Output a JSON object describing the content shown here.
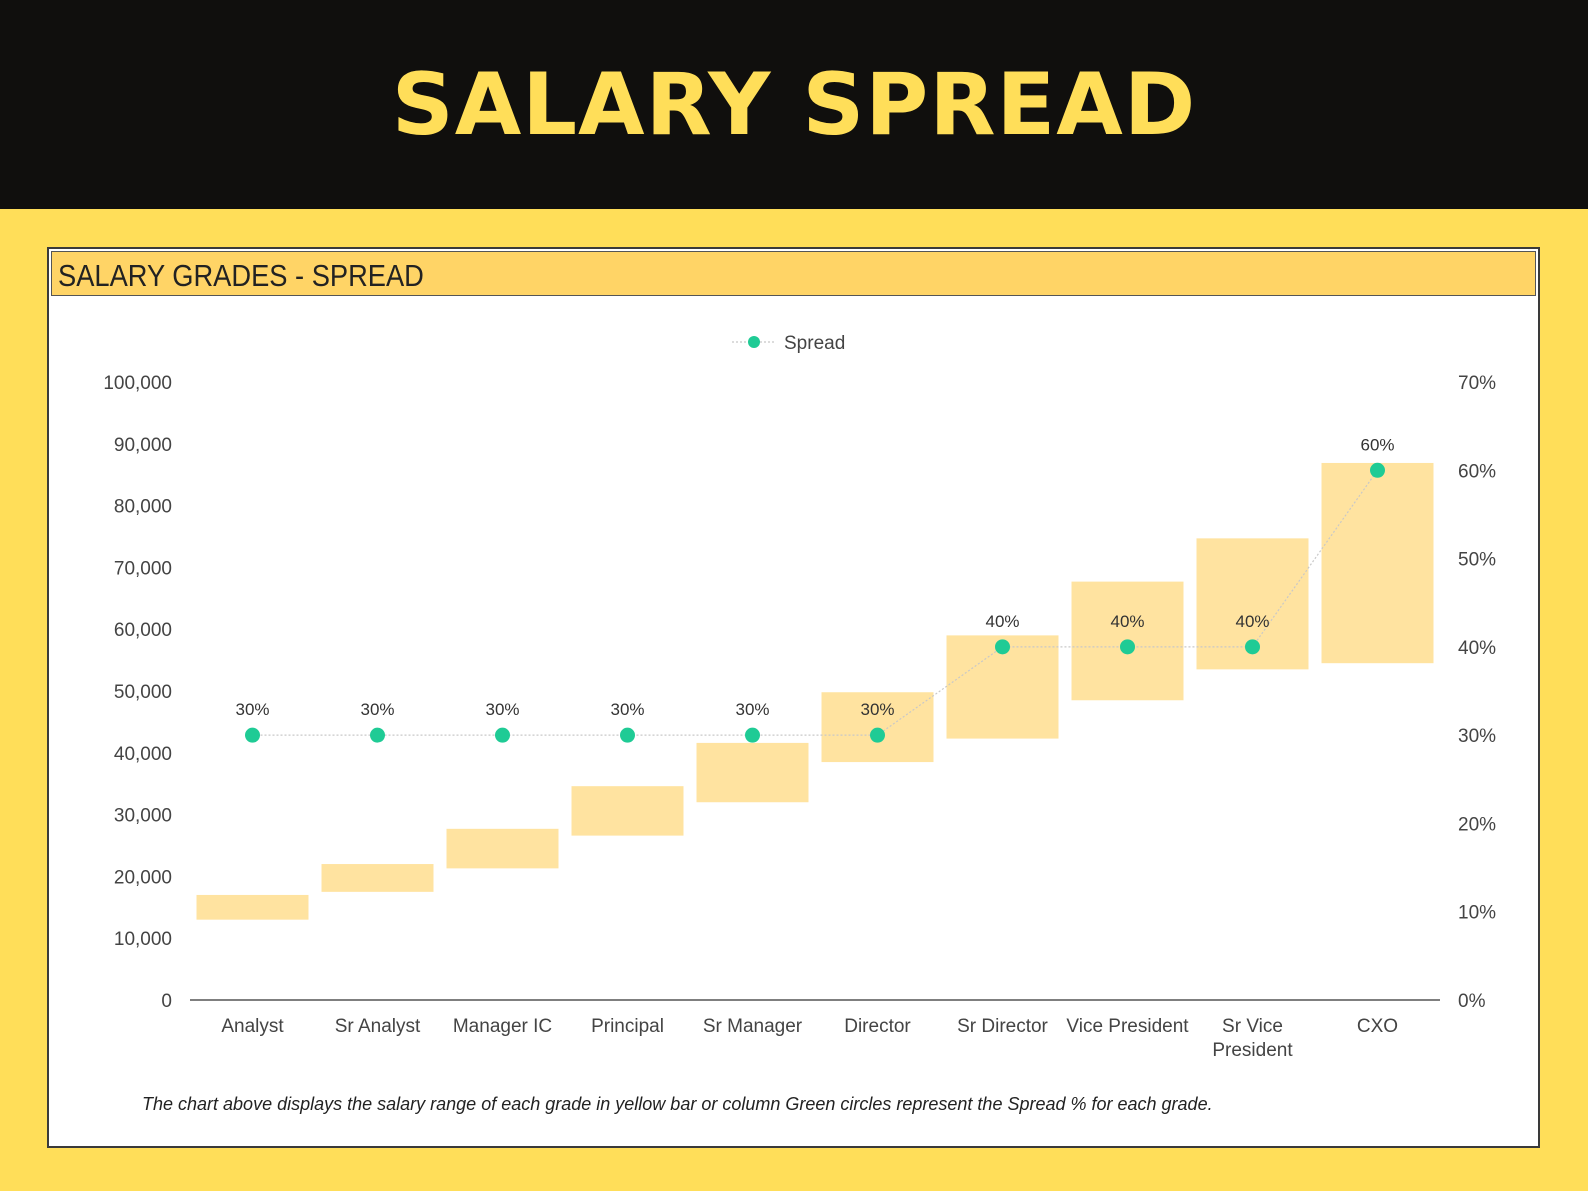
{
  "banner": {
    "title": "SALARY SPREAD"
  },
  "panel": {
    "title": "SALARY GRADES - SPREAD"
  },
  "colors": {
    "bar": "#FFE3A0",
    "dot": "#1FCB95",
    "line": "#C8C8C8",
    "banner_bg": "#100F0D",
    "accent": "#FFDE59"
  },
  "chart_data": {
    "type": "bar",
    "legend": {
      "label": "Spread",
      "placement": "top-center"
    },
    "categories": [
      [
        "Analyst"
      ],
      [
        "Sr Analyst"
      ],
      [
        "Manager IC"
      ],
      [
        "Principal"
      ],
      [
        "Sr Manager"
      ],
      [
        "Director"
      ],
      [
        "Sr Director"
      ],
      [
        "Vice President"
      ],
      [
        "Sr Vice",
        "President"
      ],
      [
        "CXO"
      ]
    ],
    "salary_min": [
      13000,
      17500,
      21300,
      26600,
      32000,
      38500,
      42300,
      48500,
      53500,
      54500
    ],
    "salary_max": [
      17000,
      22000,
      27700,
      34600,
      41600,
      49800,
      59000,
      67700,
      74700,
      86900
    ],
    "spread": [
      30,
      30,
      30,
      30,
      30,
      30,
      40,
      40,
      40,
      60
    ],
    "spread_labels": [
      "30%",
      "30%",
      "30%",
      "30%",
      "30%",
      "30%",
      "40%",
      "40%",
      "40%",
      "60%"
    ],
    "y_left": {
      "min": 0,
      "max": 100000,
      "ticks": [
        "0",
        "10,000",
        "20,000",
        "30,000",
        "40,000",
        "50,000",
        "60,000",
        "70,000",
        "80,000",
        "90,000",
        "100,000"
      ]
    },
    "y_right": {
      "min": 0,
      "max": 70,
      "ticks": [
        "0%",
        "10%",
        "20%",
        "30%",
        "40%",
        "50%",
        "60%",
        "70%"
      ]
    },
    "grid": false
  },
  "footnote": "The chart above displays the salary range of each grade in yellow bar or column Green circles represent the Spread % for each grade."
}
